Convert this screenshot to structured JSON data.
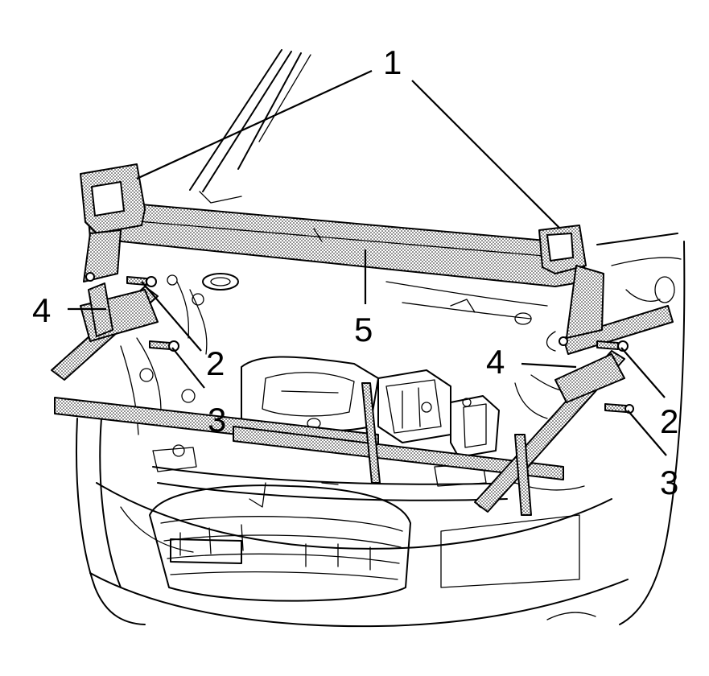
{
  "colors": {
    "line": "#000000",
    "background": "#ffffff",
    "stipple": "#000000"
  },
  "callouts": {
    "c1": "1",
    "c2_left": "2",
    "c2_right": "2",
    "c3_left": "3",
    "c3_right": "3",
    "c4_left": "4",
    "c4_right": "4",
    "c5": "5"
  }
}
